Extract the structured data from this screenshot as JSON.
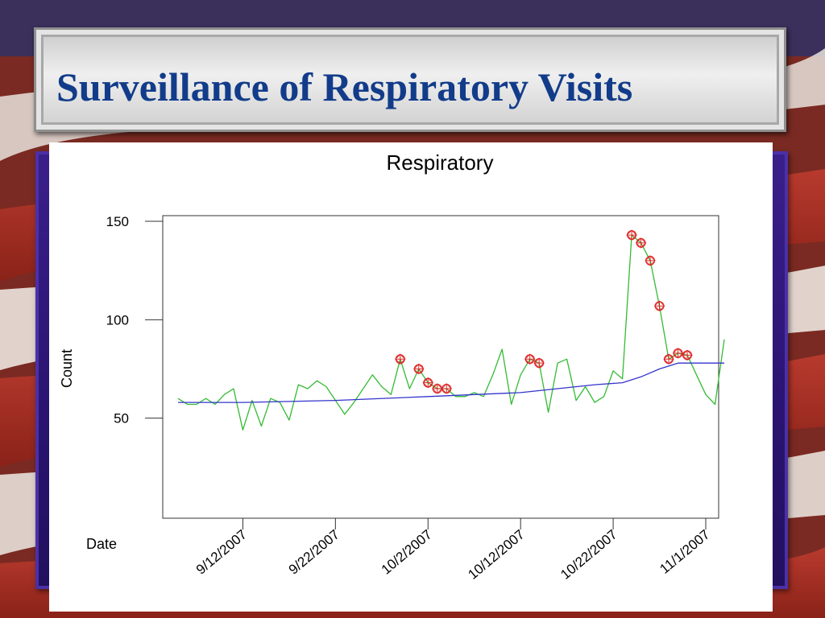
{
  "slide": {
    "title": "Surveillance of Respiratory Visits"
  },
  "colors": {
    "title_text": "#123c8a",
    "observed_line": "#33bb33",
    "baseline_line": "#3333cc",
    "alert_marker": "#dd2222"
  },
  "chart_data": {
    "type": "line",
    "title": "Respiratory",
    "ylabel": "Count",
    "xlabel": "Date",
    "ylim": [
      0,
      150
    ],
    "yticks": [
      50,
      100,
      150
    ],
    "xlim": [
      "2007-09-05",
      "2007-11-01"
    ],
    "xticks": [
      "9/12/2007",
      "9/22/2007",
      "10/2/2007",
      "10/12/2007",
      "10/22/2007",
      "11/1/2007"
    ],
    "xtick_dates": [
      "2007-09-12",
      "2007-09-22",
      "2007-10-02",
      "2007-10-12",
      "2007-10-22",
      "2007-11-01"
    ],
    "grid": false,
    "series": [
      {
        "role": "observed",
        "color": "#33bb33",
        "points": [
          [
            "2007-09-05",
            60
          ],
          [
            "2007-09-06",
            57
          ],
          [
            "2007-09-07",
            57
          ],
          [
            "2007-09-08",
            60
          ],
          [
            "2007-09-09",
            57
          ],
          [
            "2007-09-10",
            62
          ],
          [
            "2007-09-11",
            65
          ],
          [
            "2007-09-12",
            44
          ],
          [
            "2007-09-13",
            59
          ],
          [
            "2007-09-14",
            46
          ],
          [
            "2007-09-15",
            60
          ],
          [
            "2007-09-16",
            58
          ],
          [
            "2007-09-17",
            49
          ],
          [
            "2007-09-18",
            67
          ],
          [
            "2007-09-19",
            65
          ],
          [
            "2007-09-20",
            69
          ],
          [
            "2007-09-21",
            66
          ],
          [
            "2007-09-22",
            59
          ],
          [
            "2007-09-23",
            52
          ],
          [
            "2007-09-24",
            58
          ],
          [
            "2007-09-25",
            65
          ],
          [
            "2007-09-26",
            72
          ],
          [
            "2007-09-27",
            66
          ],
          [
            "2007-09-28",
            62
          ],
          [
            "2007-09-29",
            80
          ],
          [
            "2007-09-30",
            65
          ],
          [
            "2007-10-01",
            75
          ],
          [
            "2007-10-02",
            68
          ],
          [
            "2007-10-03",
            65
          ],
          [
            "2007-10-04",
            65
          ],
          [
            "2007-10-05",
            61
          ],
          [
            "2007-10-06",
            61
          ],
          [
            "2007-10-07",
            63
          ],
          [
            "2007-10-08",
            61
          ],
          [
            "2007-10-09",
            72
          ],
          [
            "2007-10-10",
            85
          ],
          [
            "2007-10-11",
            57
          ],
          [
            "2007-10-12",
            72
          ],
          [
            "2007-10-13",
            80
          ],
          [
            "2007-10-14",
            78
          ],
          [
            "2007-10-15",
            53
          ],
          [
            "2007-10-16",
            78
          ],
          [
            "2007-10-17",
            80
          ],
          [
            "2007-10-18",
            59
          ],
          [
            "2007-10-19",
            66
          ],
          [
            "2007-10-20",
            58
          ],
          [
            "2007-10-21",
            61
          ],
          [
            "2007-10-22",
            74
          ],
          [
            "2007-10-23",
            70
          ],
          [
            "2007-10-24",
            143
          ],
          [
            "2007-10-25",
            139
          ],
          [
            "2007-10-26",
            130
          ],
          [
            "2007-10-27",
            107
          ],
          [
            "2007-10-28",
            80
          ],
          [
            "2007-10-29",
            83
          ],
          [
            "2007-10-30",
            82
          ],
          [
            "2007-10-31",
            72
          ],
          [
            "2007-11-01",
            62
          ],
          [
            "2007-11-02",
            57
          ],
          [
            "2007-11-03",
            90
          ]
        ]
      },
      {
        "role": "baseline",
        "color": "#3333cc",
        "points": [
          [
            "2007-09-05",
            58
          ],
          [
            "2007-09-12",
            58
          ],
          [
            "2007-09-22",
            59
          ],
          [
            "2007-10-02",
            61
          ],
          [
            "2007-10-12",
            63
          ],
          [
            "2007-10-16",
            65
          ],
          [
            "2007-10-20",
            67
          ],
          [
            "2007-10-23",
            68
          ],
          [
            "2007-10-25",
            71
          ],
          [
            "2007-10-27",
            75
          ],
          [
            "2007-10-29",
            78
          ],
          [
            "2007-11-03",
            78
          ]
        ]
      }
    ],
    "alerts": [
      [
        "2007-09-29",
        80
      ],
      [
        "2007-10-01",
        75
      ],
      [
        "2007-10-02",
        68
      ],
      [
        "2007-10-03",
        65
      ],
      [
        "2007-10-04",
        65
      ],
      [
        "2007-10-13",
        80
      ],
      [
        "2007-10-14",
        78
      ],
      [
        "2007-10-24",
        143
      ],
      [
        "2007-10-25",
        139
      ],
      [
        "2007-10-26",
        130
      ],
      [
        "2007-10-27",
        107
      ],
      [
        "2007-10-28",
        80
      ],
      [
        "2007-10-29",
        83
      ],
      [
        "2007-10-30",
        82
      ]
    ]
  }
}
